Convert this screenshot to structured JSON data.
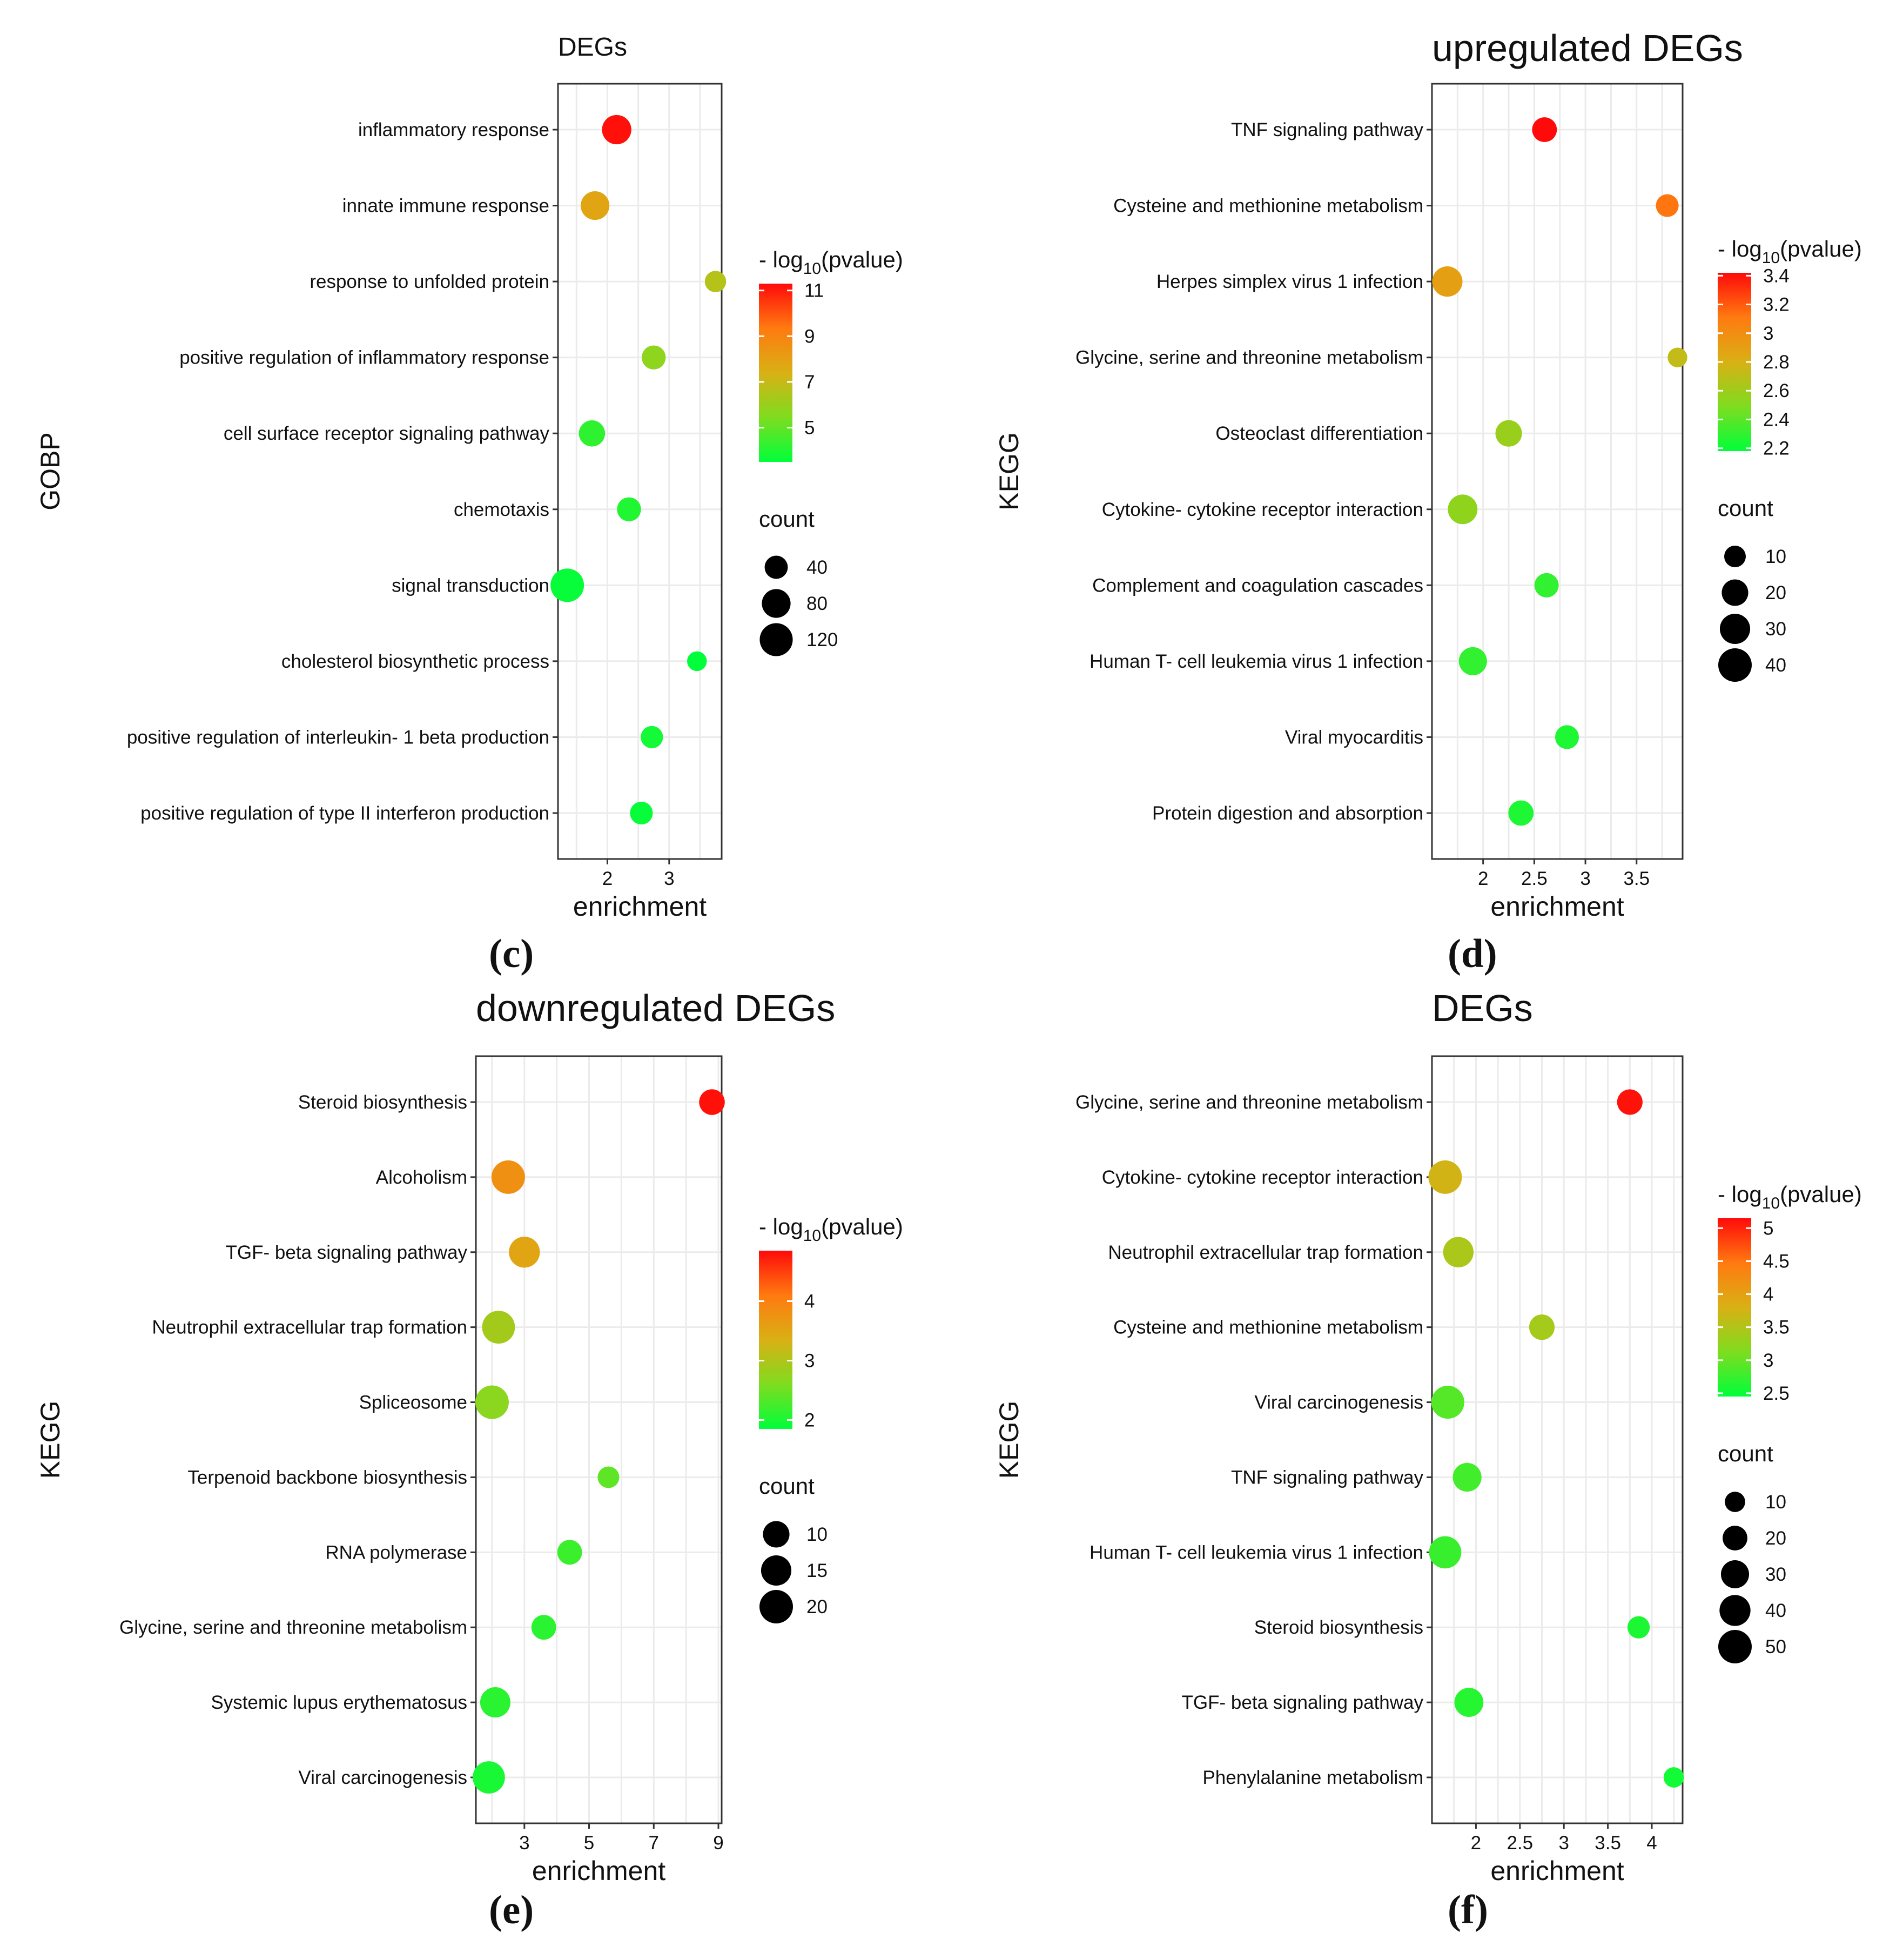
{
  "palette": {
    "low": "#00ff3a",
    "mid_low": "#7fdc1f",
    "mid": "#d9b015",
    "mid_high": "#ff7a10",
    "high": "#ff0a0a",
    "grid": "#ebebeb",
    "border": "#333333",
    "point_size_key": "#000000"
  },
  "chart_data": [
    {
      "id": "c",
      "panel_label": "(c)",
      "type": "scatter",
      "title": "DEGs",
      "ylabel": "GOBP",
      "xlabel": "enrichment",
      "xlim": [
        1.2,
        3.85
      ],
      "xticks": [
        2,
        3
      ],
      "categories": [
        "inflammatory response",
        "innate immune response",
        "response to unfolded protein",
        "positive regulation of inflammatory response",
        "cell surface receptor signaling pathway",
        "chemotaxis",
        "signal transduction",
        "cholesterol biosynthetic process",
        "positive regulation of interleukin- 1 beta production",
        "positive regulation of type II interferon production"
      ],
      "x": [
        2.15,
        1.8,
        3.75,
        2.75,
        1.75,
        2.35,
        1.35,
        3.45,
        2.72,
        2.55
      ],
      "color_values": [
        11.2,
        7.8,
        6.6,
        5.8,
        4.2,
        4.0,
        3.6,
        3.5,
        3.8,
        3.6
      ],
      "size_values": [
        85,
        80,
        30,
        45,
        60,
        45,
        125,
        22,
        35,
        38
      ],
      "color_legend": {
        "title": "- log",
        "subscript": "10",
        "suffix": "(pvalue)",
        "min": 3.5,
        "max": 11.3,
        "ticks": [
          11,
          9,
          7,
          5
        ]
      },
      "size_legend": {
        "title": "count",
        "ticks": [
          40,
          80,
          120
        ]
      }
    },
    {
      "id": "d",
      "panel_label": "(d)",
      "type": "scatter",
      "title": "upregulated DEGs",
      "ylabel": "KEGG",
      "xlabel": "enrichment",
      "xlim": [
        1.5,
        3.95
      ],
      "xticks": [
        2.0,
        2.5,
        3.0,
        3.5
      ],
      "categories": [
        "TNF signaling pathway",
        "Cysteine and methionine metabolism",
        "Herpes simplex virus 1 infection",
        "Glycine, serine and threonine metabolism",
        "Osteoclast differentiation",
        "Cytokine- cytokine receptor interaction",
        "Complement and coagulation cascades",
        "Human T- cell leukemia virus 1 infection",
        "Viral myocarditis",
        "Protein digestion and absorption"
      ],
      "x": [
        2.6,
        3.8,
        1.65,
        3.9,
        2.25,
        1.8,
        2.62,
        1.9,
        2.82,
        2.37
      ],
      "color_values": [
        3.42,
        3.12,
        2.9,
        2.72,
        2.58,
        2.55,
        2.3,
        2.3,
        2.25,
        2.25
      ],
      "size_values": [
        16,
        12,
        30,
        7,
        20,
        28,
        15,
        24,
        14,
        17
      ],
      "color_legend": {
        "title": "- log",
        "subscript": "10",
        "suffix": "(pvalue)",
        "min": 2.18,
        "max": 3.42,
        "ticks": [
          3.4,
          3.2,
          3.0,
          2.8,
          2.6,
          2.4,
          2.2
        ]
      },
      "size_legend": {
        "title": "count",
        "ticks": [
          10,
          20,
          30,
          40
        ]
      }
    },
    {
      "id": "e",
      "panel_label": "(e)",
      "type": "scatter",
      "title": "downregulated DEGs",
      "ylabel": "KEGG",
      "xlabel": "enrichment",
      "xlim": [
        1.5,
        9.1
      ],
      "xticks": [
        3,
        5,
        7,
        9
      ],
      "categories": [
        "Steroid biosynthesis",
        "Alcoholism",
        "TGF- beta signaling pathway",
        "Neutrophil extracellular trap formation",
        "Spliceosome",
        "Terpenoid backbone biosynthesis",
        "RNA polymerase",
        "Glycine, serine and threonine metabolism",
        "Systemic lupus erythematosus",
        "Viral carcinogenesis"
      ],
      "x": [
        8.8,
        2.5,
        3.0,
        2.2,
        2.0,
        5.6,
        4.4,
        3.6,
        2.1,
        1.9
      ],
      "color_values": [
        4.8,
        3.8,
        3.5,
        2.9,
        2.7,
        2.4,
        2.2,
        2.1,
        2.1,
        2.0
      ],
      "size_values": [
        9,
        20,
        16,
        19,
        20,
        5,
        8,
        8,
        15,
        18
      ],
      "color_legend": {
        "title": "- log",
        "subscript": "10",
        "suffix": "(pvalue)",
        "min": 1.85,
        "max": 4.85,
        "ticks": [
          4,
          3,
          2
        ]
      },
      "size_legend": {
        "title": "count",
        "ticks": [
          10,
          15,
          20
        ]
      }
    },
    {
      "id": "f",
      "panel_label": "(f)",
      "type": "scatter",
      "title": "DEGs",
      "ylabel": "KEGG",
      "xlabel": "enrichment",
      "xlim": [
        1.5,
        4.35
      ],
      "xticks": [
        2.0,
        2.5,
        3.0,
        3.5,
        4.0
      ],
      "categories": [
        "Glycine, serine and threonine metabolism",
        "Cytokine- cytokine receptor interaction",
        "Neutrophil extracellular trap formation",
        "Cysteine and methionine metabolism",
        "Viral carcinogenesis",
        "TNF signaling pathway",
        "Human T- cell leukemia virus 1 infection",
        "Steroid biosynthesis",
        "TGF- beta signaling pathway",
        "Phenylalanine metabolism"
      ],
      "x": [
        3.75,
        1.65,
        1.8,
        2.75,
        1.68,
        1.9,
        1.65,
        3.85,
        1.92,
        4.25
      ],
      "color_values": [
        5.1,
        3.75,
        3.45,
        3.4,
        2.9,
        2.8,
        2.75,
        2.6,
        2.65,
        2.55
      ],
      "size_values": [
        22,
        50,
        38,
        22,
        48,
        32,
        45,
        14,
        33,
        10
      ],
      "color_legend": {
        "title": "- log",
        "subscript": "10",
        "suffix": "(pvalue)",
        "min": 2.45,
        "max": 5.15,
        "ticks": [
          5.0,
          4.5,
          4.0,
          3.5,
          3.0,
          2.5
        ]
      },
      "size_legend": {
        "title": "count",
        "ticks": [
          10,
          20,
          30,
          40,
          50
        ]
      }
    }
  ]
}
